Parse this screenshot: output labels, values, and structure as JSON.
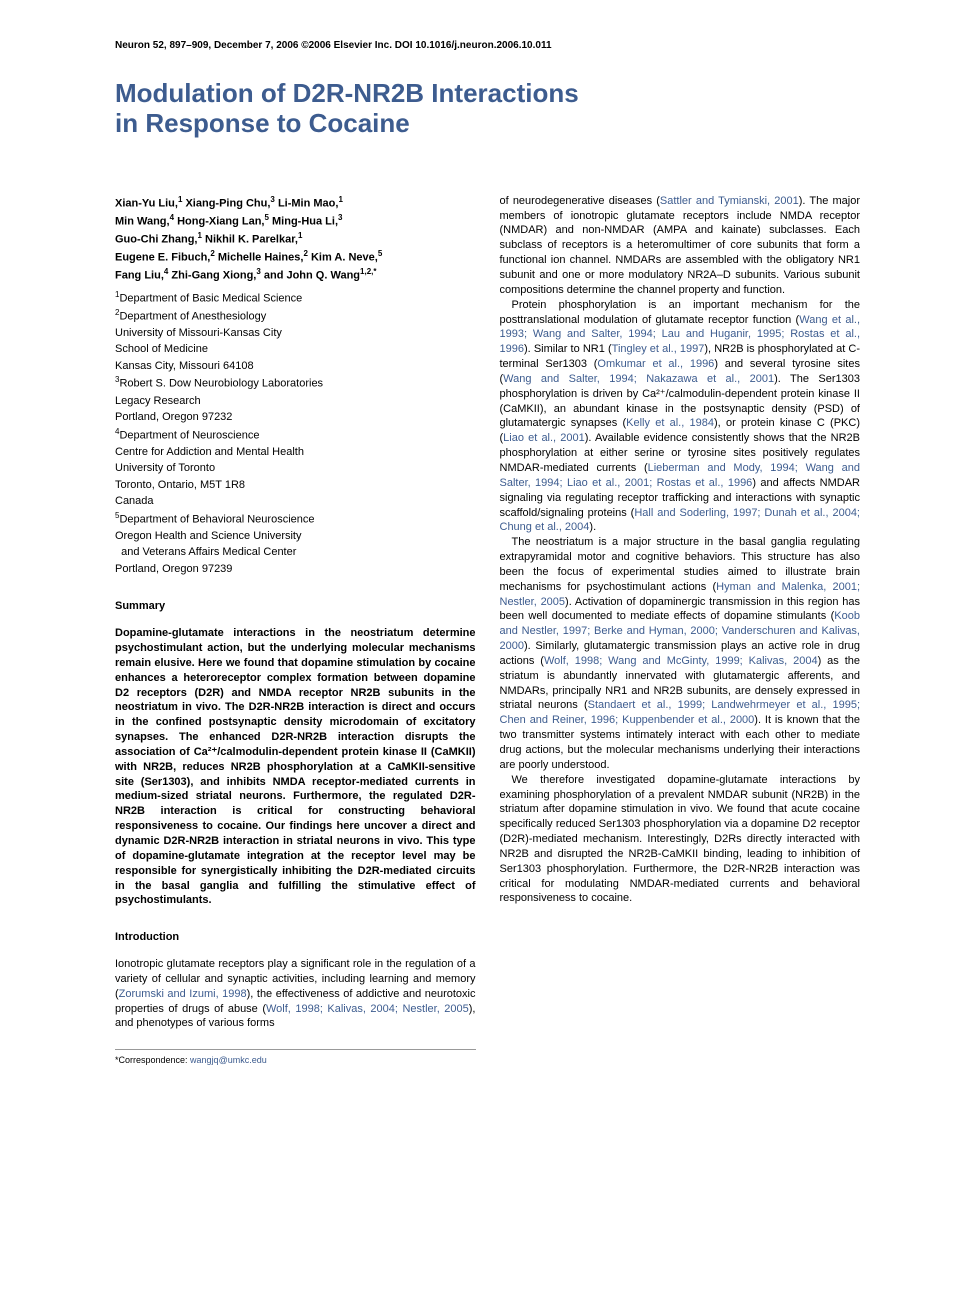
{
  "header_meta": "Neuron 52, 897–909, December 7, 2006 ©2006 Elsevier Inc.   DOI 10.1016/j.neuron.2006.10.011",
  "title_l1": "Modulation of D2R-NR2B Interactions",
  "title_l2": "in Response to Cocaine",
  "authors": {
    "a1": {
      "name": "Xian-Yu Liu,",
      "sup": "1"
    },
    "a2": {
      "name": " Xiang-Ping Chu,",
      "sup": "3"
    },
    "a3": {
      "name": " Li-Min Mao,",
      "sup": "1"
    },
    "a4": {
      "name": "Min Wang,",
      "sup": "4"
    },
    "a5": {
      "name": " Hong-Xiang Lan,",
      "sup": "5"
    },
    "a6": {
      "name": " Ming-Hua Li,",
      "sup": "3"
    },
    "a7": {
      "name": "Guo-Chi Zhang,",
      "sup": "1"
    },
    "a8": {
      "name": " Nikhil K. Parelkar,",
      "sup": "1"
    },
    "a9": {
      "name": "Eugene E. Fibuch,",
      "sup": "2"
    },
    "a10": {
      "name": " Michelle Haines,",
      "sup": "2"
    },
    "a11": {
      "name": " Kim A. Neve,",
      "sup": "5"
    },
    "a12": {
      "name": "Fang Liu,",
      "sup": "4"
    },
    "a13": {
      "name": " Zhi-Gang Xiong,",
      "sup": "3"
    },
    "a14": {
      "name": " and John Q. Wang",
      "sup": "1,2,*"
    }
  },
  "affiliations": {
    "l1": {
      "sup": "1",
      "text": "Department of Basic Medical Science"
    },
    "l2": {
      "sup": "2",
      "text": "Department of Anesthesiology"
    },
    "l3": {
      "sup": "",
      "text": "University of Missouri-Kansas City"
    },
    "l4": {
      "sup": "",
      "text": "School of Medicine"
    },
    "l5": {
      "sup": "",
      "text": "Kansas City, Missouri 64108"
    },
    "l6": {
      "sup": "3",
      "text": "Robert S. Dow Neurobiology Laboratories"
    },
    "l7": {
      "sup": "",
      "text": "Legacy Research"
    },
    "l8": {
      "sup": "",
      "text": "Portland, Oregon 97232"
    },
    "l9": {
      "sup": "4",
      "text": "Department of Neuroscience"
    },
    "l10": {
      "sup": "",
      "text": "Centre for Addiction and Mental Health"
    },
    "l11": {
      "sup": "",
      "text": "University of Toronto"
    },
    "l12": {
      "sup": "",
      "text": "Toronto, Ontario, M5T 1R8"
    },
    "l13": {
      "sup": "",
      "text": "Canada"
    },
    "l14": {
      "sup": "5",
      "text": "Department of Behavioral Neuroscience"
    },
    "l15": {
      "sup": "",
      "text": "Oregon Health and Science University"
    },
    "l16": {
      "sup": "",
      "text": "  and Veterans Affairs Medical Center"
    },
    "l17": {
      "sup": "",
      "text": "Portland, Oregon 97239"
    }
  },
  "sections": {
    "summary_head": "Summary",
    "summary_body": "Dopamine-glutamate interactions in the neostriatum determine psychostimulant action, but the underlying molecular mechanisms remain elusive. Here we found that dopamine stimulation by cocaine enhances a heteroreceptor complex formation between dopamine D2 receptors (D2R) and NMDA receptor NR2B subunits in the neostriatum in vivo. The D2R-NR2B interaction is direct and occurs in the confined postsynaptic density microdomain of excitatory synapses. The enhanced D2R-NR2B interaction disrupts the association of Ca²⁺/calmodulin-dependent protein kinase II (CaMKII) with NR2B, reduces NR2B phosphorylation at a CaMKII-sensitive site (Ser1303), and inhibits NMDA receptor-mediated currents in medium-sized striatal neurons. Furthermore, the regulated D2R-NR2B interaction is critical for constructing behavioral responsiveness to cocaine. Our findings here uncover a direct and dynamic D2R-NR2B interaction in striatal neurons in vivo. This type of dopamine-glutamate integration at the receptor level may be responsible for synergistically inhibiting the D2R-mediated circuits in the basal ganglia and fulfilling the stimulative effect of psychostimulants.",
    "intro_head": "Introduction",
    "intro_p1a": "Ionotropic glutamate receptors play a significant role in the regulation of a variety of cellular and synaptic activities, including learning and memory (",
    "intro_p1_ref1": "Zorumski and Izumi, 1998",
    "intro_p1b": "), the effectiveness of addictive and neurotoxic properties of drugs of abuse (",
    "intro_p1_ref2": "Wolf, 1998; Kalivas, 2004; Nestler, 2005",
    "intro_p1c": "), and phenotypes of various forms"
  },
  "right": {
    "p1a": "of neurodegenerative diseases (",
    "p1_ref1": "Sattler and Tymianski, 2001",
    "p1b": "). The major members of ionotropic glutamate receptors include NMDA receptor (NMDAR) and non-NMDAR (AMPA and kainate) subclasses. Each subclass of receptors is a heteromultimer of core subunits that form a functional ion channel. NMDARs are assembled with the obligatory NR1 subunit and one or more modulatory NR2A–D subunits. Various subunit compositions determine the channel property and function.",
    "p2a": "Protein phosphorylation is an important mechanism for the posttranslational modulation of glutamate receptor function (",
    "p2_ref1": "Wang et al., 1993; Wang and Salter, 1994; Lau and Huganir, 1995; Rostas et al., 1996",
    "p2b": "). Similar to NR1 (",
    "p2_ref2": "Tingley et al., 1997",
    "p2c": "), NR2B is phosphorylated at C-terminal Ser1303 (",
    "p2_ref3": "Omkumar et al., 1996",
    "p2d": ") and several tyrosine sites (",
    "p2_ref4": "Wang and Salter, 1994; Nakazawa et al., 2001",
    "p2e": "). The Ser1303 phosphorylation is driven by Ca²⁺/calmodulin-dependent protein kinase II (CaMKII), an abundant kinase in the postsynaptic density (PSD) of glutamatergic synapses (",
    "p2_ref5": "Kelly et al., 1984",
    "p2f": "), or protein kinase C (PKC) (",
    "p2_ref6": "Liao et al., 2001",
    "p2g": "). Available evidence consistently shows that the NR2B phosphorylation at either serine or tyrosine sites positively regulates NMDAR-mediated currents (",
    "p2_ref7": "Lieberman and Mody, 1994; Wang and Salter, 1994; Liao et al., 2001; Rostas et al., 1996",
    "p2h": ") and affects NMDAR signaling via regulating receptor trafficking and interactions with synaptic scaffold/signaling proteins (",
    "p2_ref8": "Hall and Soderling, 1997; Dunah et al., 2004; Chung et al., 2004",
    "p2i": ").",
    "p3a": "The neostriatum is a major structure in the basal ganglia regulating extrapyramidal motor and cognitive behaviors. This structure has also been the focus of experimental studies aimed to illustrate brain mechanisms for psychostimulant actions (",
    "p3_ref1": "Hyman and Malenka, 2001; Nestler, 2005",
    "p3b": "). Activation of dopaminergic transmission in this region has been well documented to mediate effects of dopamine stimulants (",
    "p3_ref2": "Koob and Nestler, 1997; Berke and Hyman, 2000; Vanderschuren and Kalivas, 2000",
    "p3c": "). Similarly, glutamatergic transmission plays an active role in drug actions (",
    "p3_ref3": "Wolf, 1998; Wang and McGinty, 1999; Kalivas, 2004",
    "p3d": ") as the striatum is abundantly innervated with glutamatergic afferents, and NMDARs, principally NR1 and NR2B subunits, are densely expressed in striatal neurons (",
    "p3_ref4": "Standaert et al., 1999; Landwehrmeyer et al., 1995; Chen and Reiner, 1996; Kuppenbender et al., 2000",
    "p3e": "). It is known that the two transmitter systems intimately interact with each other to mediate drug actions, but the molecular mechanisms underlying their interactions are poorly understood.",
    "p4": "We therefore investigated dopamine-glutamate interactions by examining phosphorylation of a prevalent NMDAR subunit (NR2B) in the striatum after dopamine stimulation in vivo. We found that acute cocaine specifically reduced Ser1303 phosphorylation via a dopamine D2 receptor (D2R)-mediated mechanism. Interestingly, D2Rs directly interacted with NR2B and disrupted the NR2B-CaMKII binding, leading to inhibition of Ser1303 phosphorylation. Furthermore, the D2R-NR2B interaction was critical for modulating NMDAR-mediated currents and behavioral responsiveness to cocaine."
  },
  "footer": {
    "label": "*Correspondence: ",
    "email": "wangjq@umkc.edu"
  },
  "style": {
    "link_color": "#3d5c8f",
    "title_color": "#3d5c8f",
    "body_fontsize": 11,
    "title_fontsize": 26,
    "meta_fontsize": 10
  }
}
